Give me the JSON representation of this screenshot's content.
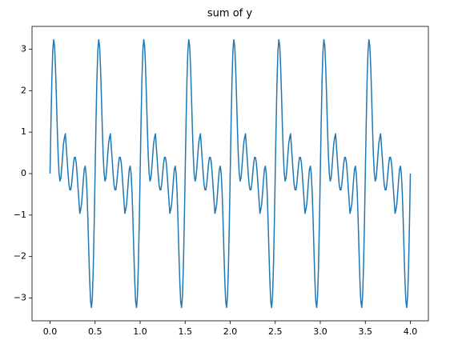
{
  "chart_data": {
    "type": "line",
    "title": "sum of y",
    "x": [
      0,
      0.01,
      0.02,
      0.03,
      0.04,
      0.05,
      0.06,
      0.07,
      0.08,
      0.09,
      0.1,
      0.11,
      0.12,
      0.13,
      0.14,
      0.15,
      0.16,
      0.17,
      0.18,
      0.19,
      0.2,
      0.21,
      0.22,
      0.23,
      0.24,
      0.25,
      0.26,
      0.27,
      0.28,
      0.29,
      0.3,
      0.31,
      0.32,
      0.33,
      0.34,
      0.35,
      0.36,
      0.37,
      0.38,
      0.39,
      0.4,
      0.41,
      0.42,
      0.43,
      0.44,
      0.45,
      0.46,
      0.47,
      0.48,
      0.49,
      0.5,
      0.51,
      0.52,
      0.53,
      0.54,
      0.55,
      0.56,
      0.57,
      0.58,
      0.59,
      0.6,
      0.61,
      0.62,
      0.63,
      0.64,
      0.65,
      0.66,
      0.67,
      0.68,
      0.69,
      0.7,
      0.71,
      0.72,
      0.73,
      0.74,
      0.75,
      0.76,
      0.77,
      0.78,
      0.79,
      0.8,
      0.81,
      0.82,
      0.83,
      0.84,
      0.85,
      0.86,
      0.87,
      0.88,
      0.89,
      0.9,
      0.91,
      0.92,
      0.93,
      0.94,
      0.95,
      0.96,
      0.97,
      0.98,
      0.99,
      1,
      1.01,
      1.02,
      1.03,
      1.04,
      1.05,
      1.06,
      1.07,
      1.08,
      1.09,
      1.1,
      1.11,
      1.12,
      1.13,
      1.14,
      1.15,
      1.16,
      1.17,
      1.18,
      1.19,
      1.2,
      1.21,
      1.22,
      1.23,
      1.24,
      1.25,
      1.26,
      1.27,
      1.28,
      1.29,
      1.3,
      1.31,
      1.32,
      1.33,
      1.34,
      1.35,
      1.36,
      1.37,
      1.38,
      1.39,
      1.4,
      1.41,
      1.42,
      1.43,
      1.44,
      1.45,
      1.46,
      1.47,
      1.48,
      1.49,
      1.5,
      1.51,
      1.52,
      1.53,
      1.54,
      1.55,
      1.56,
      1.57,
      1.58,
      1.59,
      1.6,
      1.61,
      1.62,
      1.63,
      1.64,
      1.65,
      1.66,
      1.67,
      1.68,
      1.69,
      1.7,
      1.71,
      1.72,
      1.73,
      1.74,
      1.75,
      1.76,
      1.77,
      1.78,
      1.79,
      1.8,
      1.81,
      1.82,
      1.83,
      1.84,
      1.85,
      1.86,
      1.87,
      1.88,
      1.89,
      1.9,
      1.91,
      1.92,
      1.93,
      1.94,
      1.95,
      1.96,
      1.97,
      1.98,
      1.99,
      2,
      2.01,
      2.02,
      2.03,
      2.04,
      2.05,
      2.06,
      2.07,
      2.08,
      2.09,
      2.1,
      2.11,
      2.12,
      2.13,
      2.14,
      2.15,
      2.16,
      2.17,
      2.18,
      2.19,
      2.2,
      2.21,
      2.22,
      2.23,
      2.24,
      2.25,
      2.26,
      2.27,
      2.28,
      2.29,
      2.3,
      2.31,
      2.32,
      2.33,
      2.34,
      2.35,
      2.36,
      2.37,
      2.38,
      2.39,
      2.4,
      2.41,
      2.42,
      2.43,
      2.44,
      2.45,
      2.46,
      2.47,
      2.48,
      2.49,
      2.5,
      2.51,
      2.52,
      2.53,
      2.54,
      2.55,
      2.56,
      2.57,
      2.58,
      2.59,
      2.6,
      2.61,
      2.62,
      2.63,
      2.64,
      2.65,
      2.66,
      2.67,
      2.68,
      2.69,
      2.7,
      2.71,
      2.72,
      2.73,
      2.74,
      2.75,
      2.76,
      2.77,
      2.78,
      2.79,
      2.8,
      2.81,
      2.82,
      2.83,
      2.84,
      2.85,
      2.86,
      2.87,
      2.88,
      2.89,
      2.9,
      2.91,
      2.92,
      2.93,
      2.94,
      2.95,
      2.96,
      2.97,
      2.98,
      2.99,
      3,
      3.01,
      3.02,
      3.03,
      3.04,
      3.05,
      3.06,
      3.07,
      3.08,
      3.09,
      3.1,
      3.11,
      3.12,
      3.13,
      3.14,
      3.15,
      3.16,
      3.17,
      3.18,
      3.19,
      3.2,
      3.21,
      3.22,
      3.23,
      3.24,
      3.25,
      3.26,
      3.27,
      3.28,
      3.29,
      3.3,
      3.31,
      3.32,
      3.33,
      3.34,
      3.35,
      3.36,
      3.37,
      3.38,
      3.39,
      3.4,
      3.41,
      3.42,
      3.43,
      3.44,
      3.45,
      3.46,
      3.47,
      3.48,
      3.49,
      3.5,
      3.51,
      3.52,
      3.53,
      3.54,
      3.55,
      3.56,
      3.57,
      3.58,
      3.59,
      3.6,
      3.61,
      3.62,
      3.63,
      3.64,
      3.65,
      3.66,
      3.67,
      3.68,
      3.69,
      3.7,
      3.71,
      3.72,
      3.73,
      3.74,
      3.75,
      3.76,
      3.77,
      3.78,
      3.79,
      3.8,
      3.81,
      3.82,
      3.83,
      3.84,
      3.85,
      3.86,
      3.87,
      3.88,
      3.89,
      3.9,
      3.91,
      3.92,
      3.93,
      3.94,
      3.95,
      3.96,
      3.97,
      3.98,
      3.99,
      4
    ],
    "series": [
      {
        "color": "#1f77b4",
        "values": [
          0,
          1.22,
          2.26,
          2.96,
          3.23,
          3.08,
          2.58,
          1.87,
          1.1,
          0.44,
          0,
          -0.18,
          -0.11,
          0.14,
          0.45,
          0.73,
          0.87,
          0.96,
          0.64,
          0.33,
          0,
          -0.27,
          -0.39,
          -0.39,
          -0.24,
          0,
          0.24,
          0.39,
          0.39,
          0.27,
          0,
          -0.33,
          -0.64,
          -0.96,
          -0.87,
          -0.73,
          -0.45,
          -0.14,
          0.11,
          0.18,
          0,
          -0.44,
          -1.1,
          -1.87,
          -2.58,
          -3.08,
          -3.23,
          -2.96,
          -2.26,
          -1.22,
          0,
          1.22,
          2.26,
          2.96,
          3.23,
          3.08,
          2.58,
          1.87,
          1.1,
          0.44,
          0,
          -0.18,
          -0.11,
          0.14,
          0.45,
          0.73,
          0.87,
          0.96,
          0.64,
          0.33,
          0,
          -0.27,
          -0.39,
          -0.39,
          -0.24,
          0,
          0.24,
          0.39,
          0.39,
          0.27,
          0,
          -0.33,
          -0.64,
          -0.96,
          -0.87,
          -0.73,
          -0.45,
          -0.14,
          0.11,
          0.18,
          0,
          -0.44,
          -1.1,
          -1.87,
          -2.58,
          -3.08,
          -3.23,
          -2.96,
          -2.26,
          -1.22,
          0,
          1.22,
          2.26,
          2.96,
          3.23,
          3.08,
          2.58,
          1.87,
          1.1,
          0.44,
          0,
          -0.18,
          -0.11,
          0.14,
          0.45,
          0.73,
          0.87,
          0.96,
          0.64,
          0.33,
          0,
          -0.27,
          -0.39,
          -0.39,
          -0.24,
          0,
          0.24,
          0.39,
          0.39,
          0.27,
          0,
          -0.33,
          -0.64,
          -0.96,
          -0.87,
          -0.73,
          -0.45,
          -0.14,
          0.11,
          0.18,
          0,
          -0.44,
          -1.1,
          -1.87,
          -2.58,
          -3.08,
          -3.23,
          -2.96,
          -2.26,
          -1.22,
          0,
          1.22,
          2.26,
          2.96,
          3.23,
          3.08,
          2.58,
          1.87,
          1.1,
          0.44,
          0,
          -0.18,
          -0.11,
          0.14,
          0.45,
          0.73,
          0.87,
          0.96,
          0.64,
          0.33,
          0,
          -0.27,
          -0.39,
          -0.39,
          -0.24,
          0,
          0.24,
          0.39,
          0.39,
          0.27,
          0,
          -0.33,
          -0.64,
          -0.96,
          -0.87,
          -0.73,
          -0.45,
          -0.14,
          0.11,
          0.18,
          0,
          -0.44,
          -1.1,
          -1.87,
          -2.58,
          -3.08,
          -3.23,
          -2.96,
          -2.26,
          -1.22,
          0,
          1.22,
          2.26,
          2.96,
          3.23,
          3.08,
          2.58,
          1.87,
          1.1,
          0.44,
          0,
          -0.18,
          -0.11,
          0.14,
          0.45,
          0.73,
          0.87,
          0.96,
          0.64,
          0.33,
          0,
          -0.27,
          -0.39,
          -0.39,
          -0.24,
          0,
          0.24,
          0.39,
          0.39,
          0.27,
          0,
          -0.33,
          -0.64,
          -0.96,
          -0.87,
          -0.73,
          -0.45,
          -0.14,
          0.11,
          0.18,
          0,
          -0.44,
          -1.1,
          -1.87,
          -2.58,
          -3.08,
          -3.23,
          -2.96,
          -2.26,
          -1.22,
          0,
          1.22,
          2.26,
          2.96,
          3.23,
          3.08,
          2.58,
          1.87,
          1.1,
          0.44,
          0,
          -0.18,
          -0.11,
          0.14,
          0.45,
          0.73,
          0.87,
          0.96,
          0.64,
          0.33,
          0,
          -0.27,
          -0.39,
          -0.39,
          -0.24,
          0,
          0.24,
          0.39,
          0.39,
          0.27,
          0,
          -0.33,
          -0.64,
          -0.96,
          -0.87,
          -0.73,
          -0.45,
          -0.14,
          0.11,
          0.18,
          0,
          -0.44,
          -1.1,
          -1.87,
          -2.58,
          -3.08,
          -3.23,
          -2.96,
          -2.26,
          -1.22,
          0,
          1.22,
          2.26,
          2.96,
          3.23,
          3.08,
          2.58,
          1.87,
          1.1,
          0.44,
          0,
          -0.18,
          -0.11,
          0.14,
          0.45,
          0.73,
          0.87,
          0.96,
          0.64,
          0.33,
          0,
          -0.27,
          -0.39,
          -0.39,
          -0.24,
          0,
          0.24,
          0.39,
          0.39,
          0.27,
          0,
          -0.33,
          -0.64,
          -0.96,
          -0.87,
          -0.73,
          -0.45,
          -0.14,
          0.11,
          0.18,
          0,
          -0.44,
          -1.1,
          -1.87,
          -2.58,
          -3.08,
          -3.23,
          -2.96,
          -2.26,
          -1.22,
          0,
          1.22,
          2.26,
          2.96,
          3.23,
          3.08,
          2.58,
          1.87,
          1.1,
          0.44,
          0,
          -0.18,
          -0.11,
          0.14,
          0.45,
          0.73,
          0.87,
          0.96,
          0.64,
          0.33,
          0,
          -0.27,
          -0.39,
          -0.39,
          -0.24,
          0,
          0.24,
          0.39,
          0.39,
          0.27,
          0,
          -0.33,
          -0.64,
          -0.96,
          -0.87,
          -0.73,
          -0.45,
          -0.14,
          0.11,
          0.18,
          0,
          -0.44,
          -1.1,
          -1.87,
          -2.58,
          -3.08,
          -3.23,
          -2.96,
          -2.26,
          -1.22,
          0
        ]
      }
    ],
    "xlim": [
      -0.2,
      4.2
    ],
    "xticks": [
      {
        "value": 0,
        "label": "0.0"
      },
      {
        "value": 0.5,
        "label": "0.5"
      },
      {
        "value": 1,
        "label": "1.0"
      },
      {
        "value": 1.5,
        "label": "1.5"
      },
      {
        "value": 2,
        "label": "2.0"
      },
      {
        "value": 2.5,
        "label": "2.5"
      },
      {
        "value": 3,
        "label": "3.0"
      },
      {
        "value": 3.5,
        "label": "3.5"
      },
      {
        "value": 4,
        "label": "4.0"
      }
    ],
    "ylim": [
      -3.55,
      3.55
    ],
    "yticks": [
      {
        "value": -3,
        "label": "−3"
      },
      {
        "value": -2,
        "label": "−2"
      },
      {
        "value": -1,
        "label": "−1"
      },
      0,
      1,
      2,
      3
    ],
    "grid": false
  }
}
